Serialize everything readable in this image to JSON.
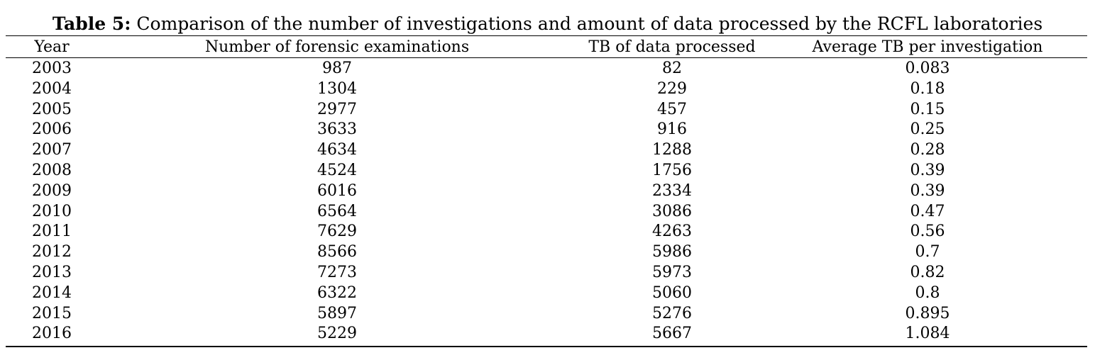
{
  "caption": {
    "label": "Table 5:",
    "text": " Comparison of the number of investigations and amount of data processed by the RCFL laboratories"
  },
  "table": {
    "headers": [
      "Year",
      "Number of forensic examinations",
      "TB of data processed",
      "Average TB per investigation"
    ],
    "rows": [
      [
        "2003",
        "987",
        "82",
        "0.083"
      ],
      [
        "2004",
        "1304",
        "229",
        "0.18"
      ],
      [
        "2005",
        "2977",
        "457",
        "0.15"
      ],
      [
        "2006",
        "3633",
        "916",
        "0.25"
      ],
      [
        "2007",
        "4634",
        "1288",
        "0.28"
      ],
      [
        "2008",
        "4524",
        "1756",
        "0.39"
      ],
      [
        "2009",
        "6016",
        "2334",
        "0.39"
      ],
      [
        "2010",
        "6564",
        "3086",
        "0.47"
      ],
      [
        "2011",
        "7629",
        "4263",
        "0.56"
      ],
      [
        "2012",
        "8566",
        "5986",
        "0.7"
      ],
      [
        "2013",
        "7273",
        "5973",
        "0.82"
      ],
      [
        "2014",
        "6322",
        "5060",
        "0.8"
      ],
      [
        "2015",
        "5897",
        "5276",
        "0.895"
      ],
      [
        "2016",
        "5229",
        "5667",
        "1.084"
      ]
    ]
  }
}
